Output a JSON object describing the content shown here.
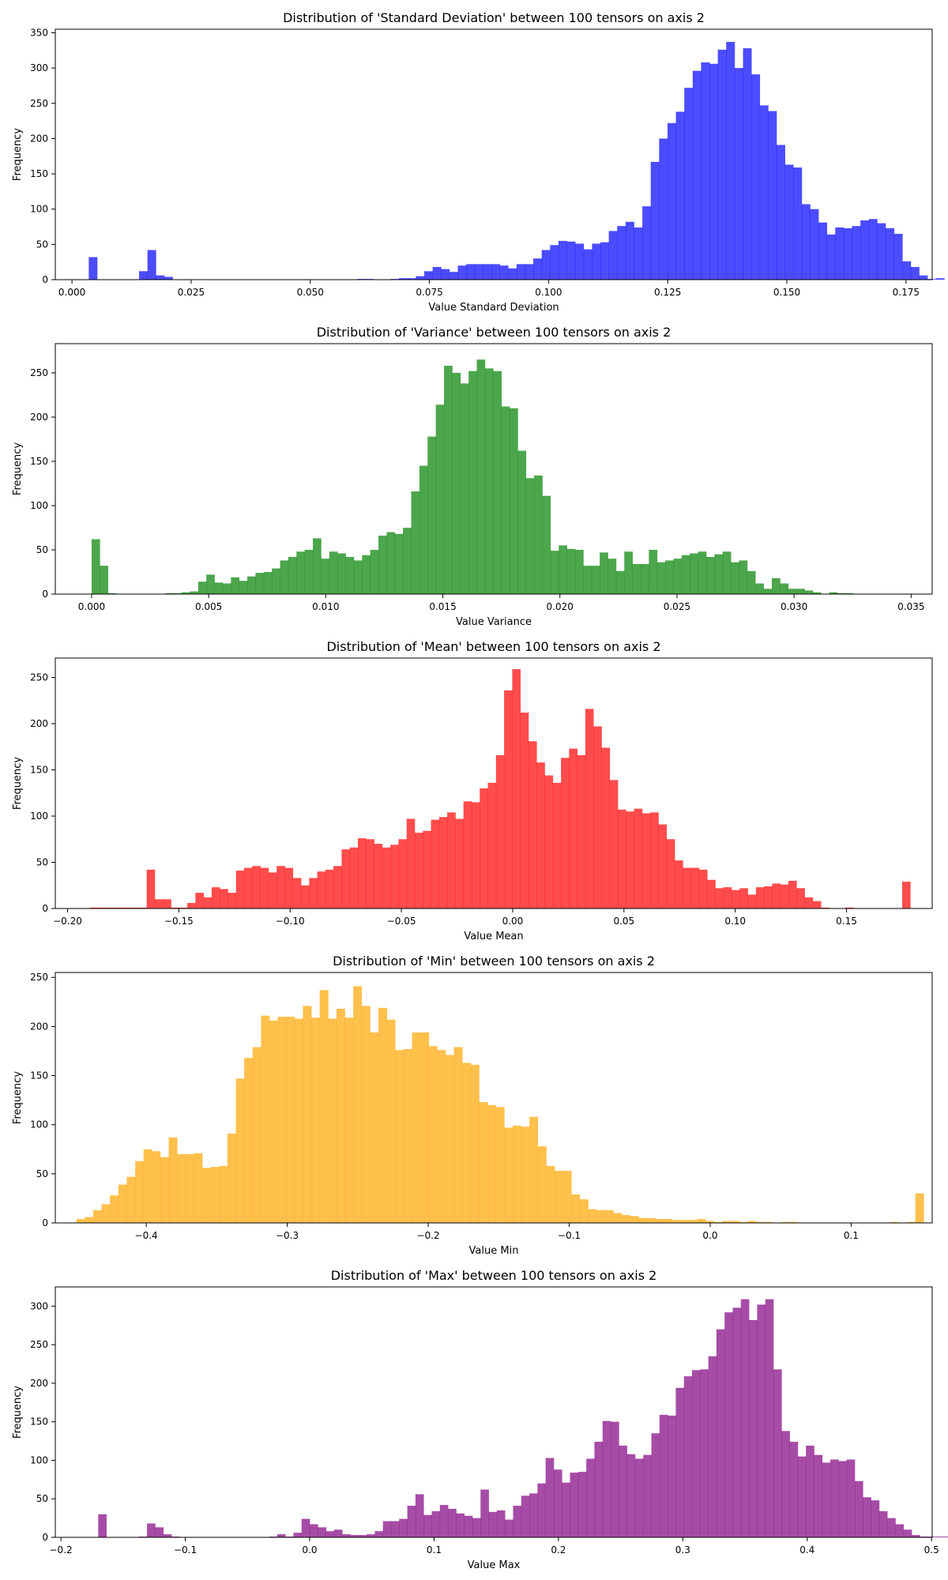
{
  "chart_data": [
    {
      "type": "bar",
      "subtype": "histogram",
      "title": "Distribution of 'Standard Deviation' between 100 tensors on axis 2",
      "xlabel": "Value Standard Deviation",
      "ylabel": "Frequency",
      "color": "#0000ff",
      "opacity": 0.7,
      "xlim": [
        -0.0035,
        0.1805
      ],
      "ylim": [
        0,
        355
      ],
      "xticks": [
        "0.000",
        "0.025",
        "0.050",
        "0.075",
        "0.100",
        "0.125",
        "0.150",
        "0.175"
      ],
      "yticks": [
        "0",
        "50",
        "100",
        "150",
        "200",
        "250",
        "300",
        "350"
      ],
      "grid": false,
      "bin_start": 0.0,
      "bin_width": 0.00176,
      "counts": [
        0,
        0,
        32,
        0,
        0,
        0,
        0,
        0,
        12,
        42,
        6,
        4,
        0,
        0,
        0,
        0,
        0,
        0,
        0,
        0,
        0,
        0,
        0,
        0,
        0,
        0,
        0,
        0,
        0,
        0,
        0,
        0,
        0,
        0,
        1,
        1,
        0,
        0,
        1,
        2,
        2,
        5,
        12,
        18,
        15,
        11,
        20,
        22,
        22,
        22,
        22,
        20,
        16,
        22,
        22,
        30,
        42,
        49,
        55,
        54,
        51,
        43,
        51,
        53,
        69,
        76,
        82,
        74,
        104,
        167,
        200,
        222,
        238,
        272,
        296,
        308,
        306,
        326,
        337,
        300,
        328,
        291,
        247,
        239,
        191,
        163,
        159,
        107,
        100,
        81,
        64,
        74,
        73,
        76,
        84,
        86,
        80,
        73,
        65,
        26,
        18,
        6,
        1,
        2,
        0
      ]
    },
    {
      "type": "bar",
      "subtype": "histogram",
      "title": "Distribution of 'Variance' between 100 tensors on axis 2",
      "xlabel": "Value Variance",
      "ylabel": "Frequency",
      "color": "#008000",
      "opacity": 0.7,
      "xlim": [
        -0.00155,
        0.0359
      ],
      "ylim": [
        0,
        283
      ],
      "xticks": [
        "0.000",
        "0.005",
        "0.010",
        "0.015",
        "0.020",
        "0.025",
        "0.030",
        "0.035"
      ],
      "yticks": [
        "0",
        "50",
        "100",
        "150",
        "200",
        "250"
      ],
      "grid": false,
      "bin_start": 0.0,
      "bin_width": 0.00035,
      "counts": [
        62,
        32,
        1,
        0,
        0,
        0,
        0,
        0,
        0,
        1,
        1,
        2,
        3,
        14,
        22,
        13,
        12,
        19,
        15,
        20,
        24,
        25,
        29,
        38,
        42,
        48,
        50,
        63,
        40,
        48,
        46,
        42,
        38,
        44,
        50,
        66,
        70,
        68,
        75,
        116,
        145,
        178,
        214,
        258,
        250,
        238,
        252,
        265,
        255,
        252,
        212,
        210,
        162,
        131,
        134,
        111,
        49,
        55,
        51,
        50,
        32,
        32,
        47,
        40,
        26,
        48,
        34,
        34,
        50,
        36,
        38,
        40,
        44,
        46,
        48,
        42,
        45,
        48,
        36,
        38,
        26,
        12,
        6,
        18,
        12,
        6,
        6,
        4,
        2,
        0,
        2,
        1,
        1
      ]
    },
    {
      "type": "bar",
      "subtype": "histogram",
      "title": "Distribution of 'Mean' between 100 tensors on axis 2",
      "xlabel": "Value Mean",
      "ylabel": "Frequency",
      "color": "#ff0000",
      "opacity": 0.7,
      "xlim": [
        -0.2055,
        0.1885
      ],
      "ylim": [
        0,
        271
      ],
      "xticks": [
        "−0.20",
        "−0.15",
        "−0.10",
        "−0.05",
        "0.00",
        "0.05",
        "0.10",
        "0.15"
      ],
      "yticks": [
        "0",
        "50",
        "100",
        "150",
        "200",
        "250"
      ],
      "grid": false,
      "bin_start": -0.19,
      "bin_width": 0.00365,
      "counts": [
        1,
        1,
        1,
        1,
        1,
        1,
        1,
        42,
        10,
        10,
        1,
        1,
        6,
        17,
        12,
        23,
        21,
        17,
        41,
        44,
        46,
        44,
        39,
        46,
        44,
        33,
        25,
        33,
        40,
        42,
        46,
        64,
        66,
        76,
        75,
        70,
        66,
        69,
        75,
        97,
        82,
        84,
        96,
        99,
        104,
        97,
        116,
        115,
        130,
        136,
        166,
        236,
        259,
        212,
        181,
        158,
        144,
        136,
        163,
        173,
        166,
        216,
        197,
        174,
        139,
        107,
        105,
        108,
        103,
        104,
        91,
        75,
        52,
        44,
        44,
        42,
        31,
        22,
        23,
        20,
        22,
        15,
        23,
        24,
        27,
        26,
        30,
        22,
        12,
        8,
        1,
        0,
        0,
        1,
        0,
        0,
        0,
        0,
        0,
        0,
        29
      ]
    },
    {
      "type": "bar",
      "subtype": "histogram",
      "title": "Distribution of 'Min' between 100 tensors on axis 2",
      "xlabel": "Value Min",
      "ylabel": "Frequency",
      "color": "#ffa500",
      "opacity": 0.7,
      "xlim": [
        -0.4645,
        0.1575
      ],
      "ylim": [
        0,
        255
      ],
      "xticks": [
        "−0.4",
        "−0.3",
        "−0.2",
        "−0.1",
        "0.0",
        "0.1"
      ],
      "yticks": [
        "0",
        "50",
        "100",
        "150",
        "200",
        "250"
      ],
      "grid": false,
      "bin_start": -0.4495,
      "bin_width": 0.00595,
      "counts": [
        4,
        6,
        13,
        19,
        28,
        39,
        47,
        63,
        75,
        73,
        67,
        87,
        70,
        70,
        71,
        56,
        57,
        58,
        91,
        147,
        168,
        179,
        211,
        206,
        210,
        210,
        208,
        221,
        209,
        237,
        208,
        218,
        209,
        241,
        221,
        194,
        219,
        207,
        176,
        177,
        194,
        194,
        180,
        176,
        171,
        179,
        163,
        161,
        123,
        120,
        118,
        97,
        99,
        98,
        108,
        78,
        58,
        53,
        53,
        29,
        24,
        14,
        13,
        13,
        10,
        8,
        7,
        5,
        5,
        4,
        4,
        3,
        3,
        3,
        4,
        2,
        1,
        2,
        2,
        1,
        2,
        1,
        1,
        0,
        1,
        1,
        0,
        0,
        0,
        0,
        0,
        0,
        0,
        0,
        0,
        0,
        0,
        1,
        0,
        1,
        30
      ]
    },
    {
      "type": "bar",
      "subtype": "histogram",
      "title": "Distribution of 'Max' between 100 tensors on axis 2",
      "xlabel": "Value Max",
      "ylabel": "Frequency",
      "color": "#800080",
      "opacity": 0.7,
      "xlim": [
        -0.2045,
        0.5005
      ],
      "ylim": [
        0,
        325
      ],
      "xticks": [
        "−0.2",
        "−0.1",
        "0.0",
        "0.1",
        "0.2",
        "0.3",
        "0.4",
        "0.5"
      ],
      "yticks": [
        "0",
        "50",
        "100",
        "150",
        "200",
        "250",
        "300"
      ],
      "grid": false,
      "bin_start": -0.17,
      "bin_width": 0.00654,
      "counts": [
        30,
        0,
        0,
        0,
        0,
        1,
        18,
        13,
        4,
        1,
        0,
        0,
        0,
        0,
        0,
        0,
        0,
        0,
        0,
        0,
        0,
        1,
        4,
        1,
        6,
        24,
        17,
        13,
        8,
        10,
        4,
        3,
        3,
        4,
        8,
        21,
        21,
        24,
        41,
        56,
        29,
        34,
        42,
        37,
        31,
        28,
        25,
        62,
        33,
        35,
        23,
        41,
        54,
        57,
        70,
        103,
        88,
        71,
        84,
        85,
        102,
        124,
        151,
        150,
        119,
        108,
        102,
        107,
        135,
        159,
        158,
        194,
        209,
        217,
        218,
        235,
        270,
        292,
        298,
        309,
        282,
        302,
        309,
        218,
        138,
        124,
        105,
        119,
        107,
        97,
        101,
        99,
        101,
        73,
        52,
        48,
        34,
        25,
        17,
        10,
        3,
        1,
        1,
        1,
        1,
        1,
        1,
        1,
        1
      ]
    }
  ]
}
